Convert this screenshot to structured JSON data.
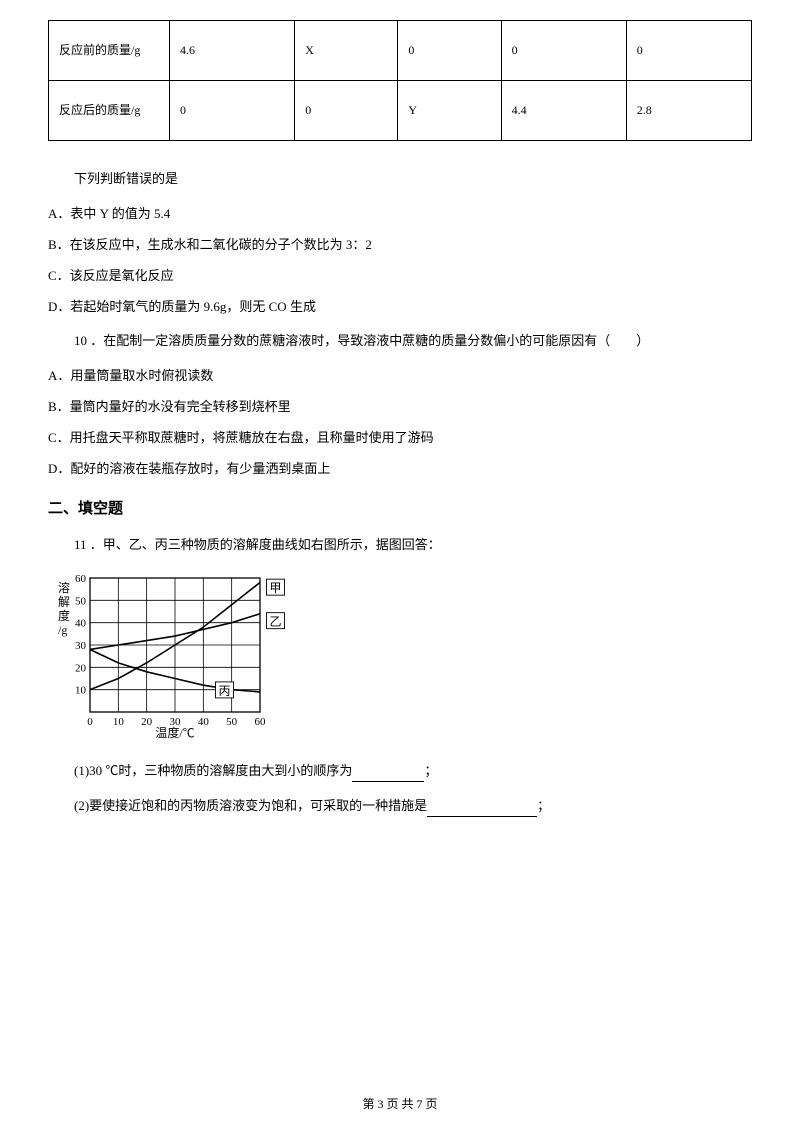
{
  "table": {
    "row1_label": "反应前的质量/g",
    "row1": [
      "4.6",
      "X",
      "0",
      "0",
      "0"
    ],
    "row2_label": "反应后的质量/g",
    "row2": [
      "0",
      "0",
      "Y",
      "4.4",
      "2.8"
    ],
    "label_col_width": 100,
    "border_color": "#000000"
  },
  "q9": {
    "prompt": "下列判断错误的是",
    "A": "A．表中 Y 的值为 5.4",
    "B": "B．在该反应中，生成水和二氧化碳的分子个数比为 3：2",
    "C": "C．该反应是氧化反应",
    "D": "D．若起始时氧气的质量为 9.6g，则无 CO 生成"
  },
  "q10": {
    "prompt": "10 ．在配制一定溶质质量分数的蔗糖溶液时，导致溶液中蔗糖的质量分数偏小的可能原因有（　　）",
    "A": "A．用量筒量取水时俯视读数",
    "B": "B．量筒内量好的水没有完全转移到烧杯里",
    "C": "C．用托盘天平称取蔗糖时，将蔗糖放在右盘，且称量时使用了游码",
    "D": "D．配好的溶液在装瓶存放时，有少量洒到桌面上"
  },
  "section2": "二、填空题",
  "q11": {
    "prompt": "11 ．甲、乙、丙三种物质的溶解度曲线如右图所示，据图回答：",
    "sub1_pre": "(1)30 ℃时，三种物质的溶解度由大到小的顺序为",
    "sub1_post": "；",
    "sub2_pre": "(2)要使接近饱和的丙物质溶液变为饱和，可采取的一种措施是",
    "sub2_post": "；"
  },
  "chart": {
    "type": "line",
    "background_color": "#ffffff",
    "grid_color": "#000000",
    "axis_color": "#000000",
    "line_color": "#000000",
    "text_color": "#000000",
    "line_width": 1.3,
    "grid_width": 0.8,
    "curve_width": 1.6,
    "y_label_line1": "溶",
    "y_label_line2": "解",
    "y_label_line3": "度",
    "y_label_line4": "/g",
    "x_label": "温度/℃",
    "x_ticks": [
      0,
      10,
      20,
      30,
      40,
      50,
      60
    ],
    "y_ticks": [
      10,
      20,
      30,
      40,
      50,
      60
    ],
    "x_min": 0,
    "x_max": 60,
    "y_min": 0,
    "y_max": 60,
    "label_fontsize": 12,
    "tick_fontsize": 11,
    "series": {
      "jia": {
        "label": "甲",
        "points": [
          [
            0,
            10
          ],
          [
            10,
            15
          ],
          [
            20,
            22
          ],
          [
            30,
            30
          ],
          [
            40,
            38
          ],
          [
            50,
            48
          ],
          [
            60,
            58
          ]
        ]
      },
      "yi": {
        "label": "乙",
        "points": [
          [
            0,
            28
          ],
          [
            10,
            30
          ],
          [
            20,
            32
          ],
          [
            30,
            34
          ],
          [
            40,
            37
          ],
          [
            50,
            40
          ],
          [
            60,
            44
          ]
        ]
      },
      "bing": {
        "label": "丙",
        "points": [
          [
            0,
            28
          ],
          [
            10,
            22
          ],
          [
            20,
            18
          ],
          [
            30,
            15
          ],
          [
            40,
            12
          ],
          [
            50,
            10
          ],
          [
            60,
            9
          ]
        ]
      }
    },
    "series_label_positions": {
      "jia": [
        63,
        55
      ],
      "yi": [
        63,
        40
      ],
      "bing": [
        45,
        9
      ]
    }
  },
  "footer": {
    "pre": "第 ",
    "cur": "3",
    "mid": " 页 共 ",
    "total": "7",
    "post": " 页"
  }
}
